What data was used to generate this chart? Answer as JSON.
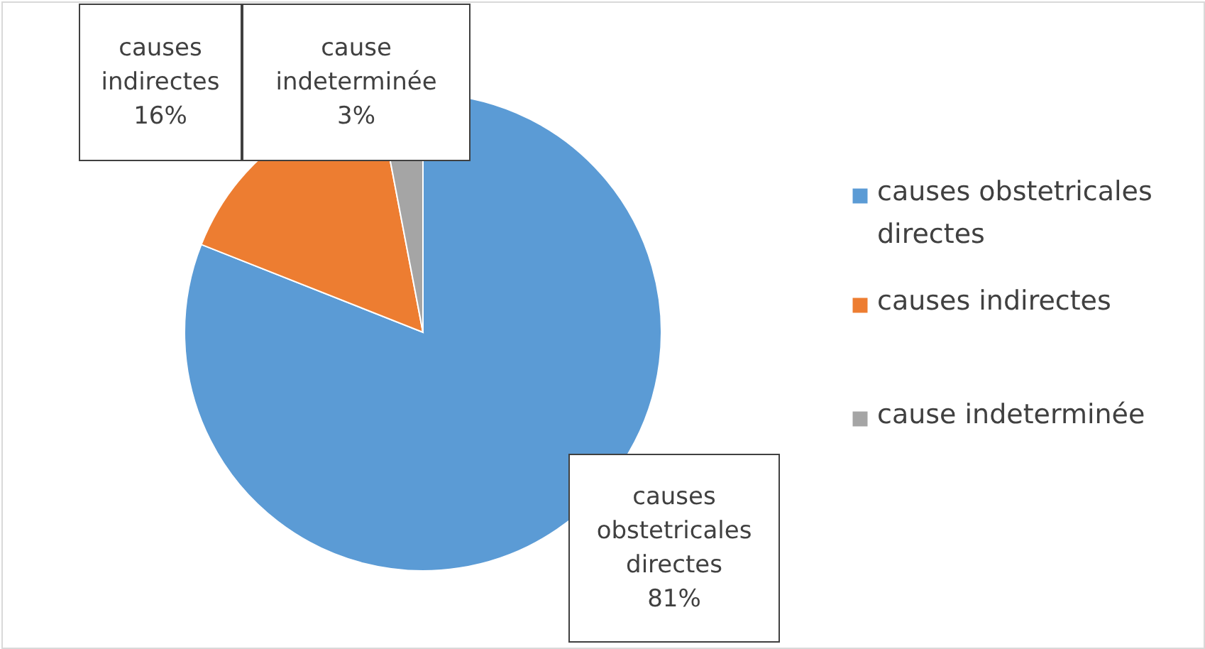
{
  "chart_data": {
    "type": "pie",
    "categories": [
      "causes obstetricales directes",
      "causes indirectes",
      "cause indeterminée"
    ],
    "values": [
      81,
      16,
      3
    ],
    "value_labels": [
      "81%",
      "16%",
      "3%"
    ],
    "colors": [
      "#5b9bd5",
      "#ed7d31",
      "#a5a5a5"
    ],
    "legend": "right"
  }
}
